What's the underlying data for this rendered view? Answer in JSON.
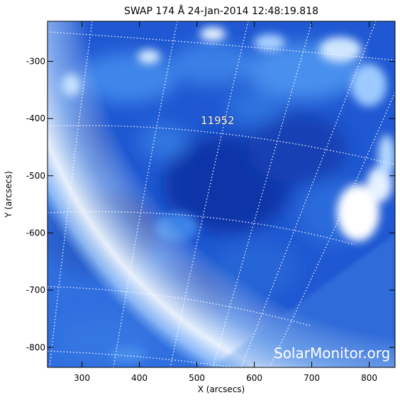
{
  "title": "SWAP 174 Å 24-Jan-2014 12:48:19.818",
  "axes": {
    "xlabel": "X (arcsecs)",
    "ylabel": "Y (arcsecs)",
    "x_ticks": [
      300,
      400,
      500,
      600,
      700,
      800
    ],
    "y_ticks": [
      -300,
      -400,
      -500,
      -600,
      -700,
      -800
    ],
    "xlim": [
      240,
      845
    ],
    "ylim": [
      -835,
      -230
    ]
  },
  "active_region": {
    "label": "11952",
    "x": 545,
    "y": -410
  },
  "watermark": "SolarMonitor.org",
  "colors": {
    "deep": "#0a2a9a",
    "mid": "#1f5fd8",
    "bright": "#6fb6ff",
    "limb": "#eef7ff",
    "grid": "#ffffff"
  }
}
